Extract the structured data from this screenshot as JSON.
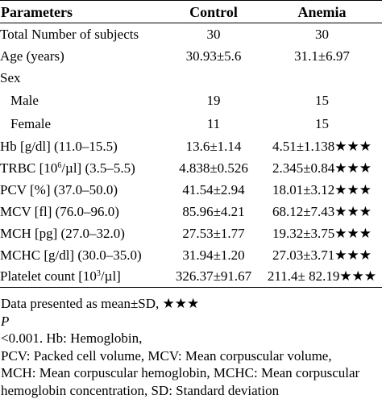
{
  "table": {
    "headers": [
      "Parameters",
      "Control",
      "Anemia"
    ],
    "rows": [
      {
        "label": "Total Number of subjects",
        "control": "30",
        "anemia": "30",
        "stars": ""
      },
      {
        "label": "Age (years)",
        "control": "30.93±5.6",
        "anemia": "31.1±6.97",
        "stars": ""
      },
      {
        "label": "Sex",
        "control": "",
        "anemia": "",
        "stars": ""
      },
      {
        "label": "Male",
        "control": "19",
        "anemia": "15",
        "stars": ""
      },
      {
        "label": "Female",
        "control": "11",
        "anemia": "15",
        "stars": ""
      },
      {
        "label": "Hb [g/dl] (11.0–15.5)",
        "control": "13.6±1.14",
        "anemia": "4.51±1.138",
        "stars": "★★★"
      },
      {
        "label_pre": "TRBC [10",
        "label_sup": "6",
        "label_post": "/µl] (3.5–5.5)",
        "control": "4.838±0.526",
        "anemia": "2.345±0.84",
        "stars": "★★★"
      },
      {
        "label": "PCV [%] (37.0–50.0)",
        "control": "41.54±2.94",
        "anemia": "18.01±3.12",
        "stars": "★★★"
      },
      {
        "label": "MCV [fl] (76.0–96.0)",
        "control": "85.96±4.21",
        "anemia": "68.12±7.43",
        "stars": "★★★"
      },
      {
        "label": "MCH [pg] (27.0–32.0)",
        "control": "27.53±1.77",
        "anemia": "19.32±3.75",
        "stars": "★★★"
      },
      {
        "label": "MCHC [g/dl] (30.0–35.0)",
        "control": "31.94±1.20",
        "anemia": "27.03±3.71",
        "stars": "★★★"
      },
      {
        "label_pre": "Platelet count [10",
        "label_sup": "3",
        "label_post": "/µl]",
        "control": "326.37±91.67",
        "anemia": "211.4± 82.19",
        "stars": "★★★"
      }
    ]
  },
  "footnote": {
    "line1_pre": "Data presented as mean±SD, ★★★",
    "line1_italic": "P",
    "line1_post": "<0.001. Hb: Hemoglobin,",
    "line2": "PCV: Packed cell volume, MCV: Mean corpuscular volume,",
    "line3": "MCH: Mean corpuscular hemoglobin, MCHC: Mean corpuscular",
    "line4": "hemoglobin concentration, SD: Standard deviation"
  }
}
